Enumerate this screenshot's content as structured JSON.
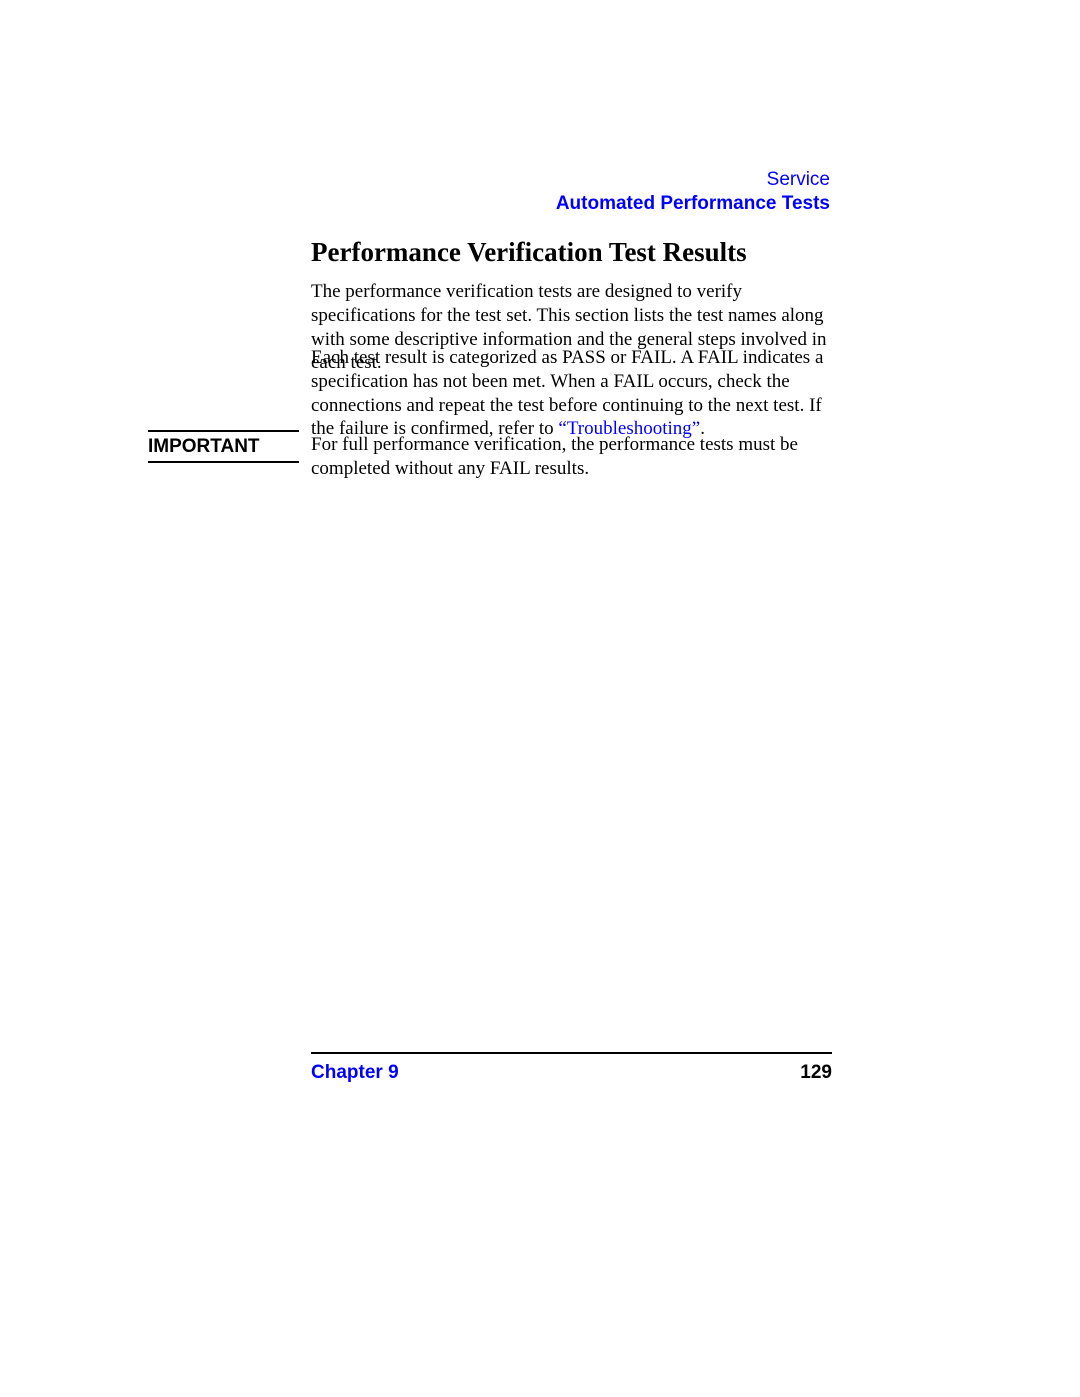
{
  "colors": {
    "link_blue": "#0000ff",
    "text_black": "#000000",
    "background": "#ffffff",
    "rule": "#000000"
  },
  "typography": {
    "body_family": "Times New Roman",
    "ui_family": "Arial",
    "heading_size_pt": 20,
    "body_size_pt": 14,
    "header_size_pt": 14,
    "footer_size_pt": 14
  },
  "header": {
    "service": "Service",
    "subtitle": "Automated Performance Tests"
  },
  "heading": "Performance Verification Test Results",
  "paragraphs": {
    "p1": "The performance verification tests are designed to verify specifications for the test set. This section lists the test names along with some descriptive information and the general steps involved in each test.",
    "p2_a": "Each test result is categorized as PASS or FAIL. A FAIL indicates a specification has not been met. When a FAIL occurs, check the connections and repeat the test before continuing to the next test. If the failure is confirmed, refer to ",
    "p2_link": "“Troubleshooting”",
    "p2_b": "."
  },
  "important": {
    "label": "IMPORTANT",
    "text": "For full performance verification, the performance tests must be completed without any FAIL results."
  },
  "footer": {
    "chapter": "Chapter 9",
    "page": "129"
  }
}
